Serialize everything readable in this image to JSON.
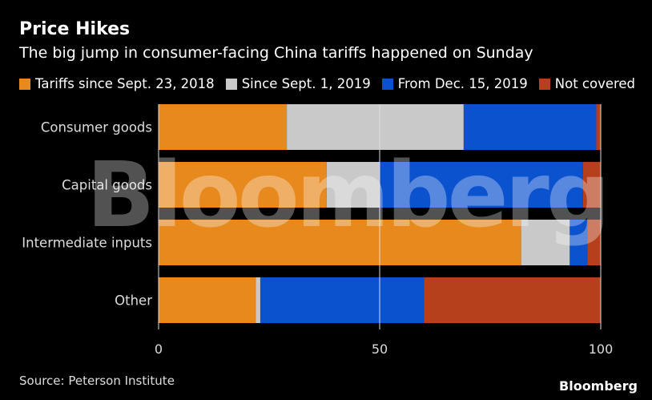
{
  "chart_data": {
    "type": "bar",
    "orientation": "horizontal",
    "stacked": true,
    "title": "Price Hikes",
    "subtitle": "The big jump in consumer-facing China tariffs happened on Sunday",
    "categories": [
      "Consumer goods",
      "Capital goods",
      "Intermediate inputs",
      "Other"
    ],
    "series": [
      {
        "name": "Tariffs since Sept. 23, 2018",
        "color": "#E8891E",
        "values": [
          29,
          38,
          82,
          22
        ]
      },
      {
        "name": "Since Sept. 1, 2019",
        "color": "#C9C9C9",
        "values": [
          40,
          12,
          11,
          1
        ]
      },
      {
        "name": "From Dec. 15, 2019",
        "color": "#0A52CE",
        "values": [
          30,
          46,
          4,
          37
        ]
      },
      {
        "name": "Not covered",
        "color": "#B7401C",
        "values": [
          1,
          4,
          3,
          40
        ]
      }
    ],
    "xlim": [
      0,
      100
    ],
    "xticks": [
      "0",
      "50",
      "100"
    ],
    "legend_position": "top",
    "source": "Source: Peterson Institute",
    "watermark": "Bloomberg",
    "brand": "Bloomberg"
  }
}
